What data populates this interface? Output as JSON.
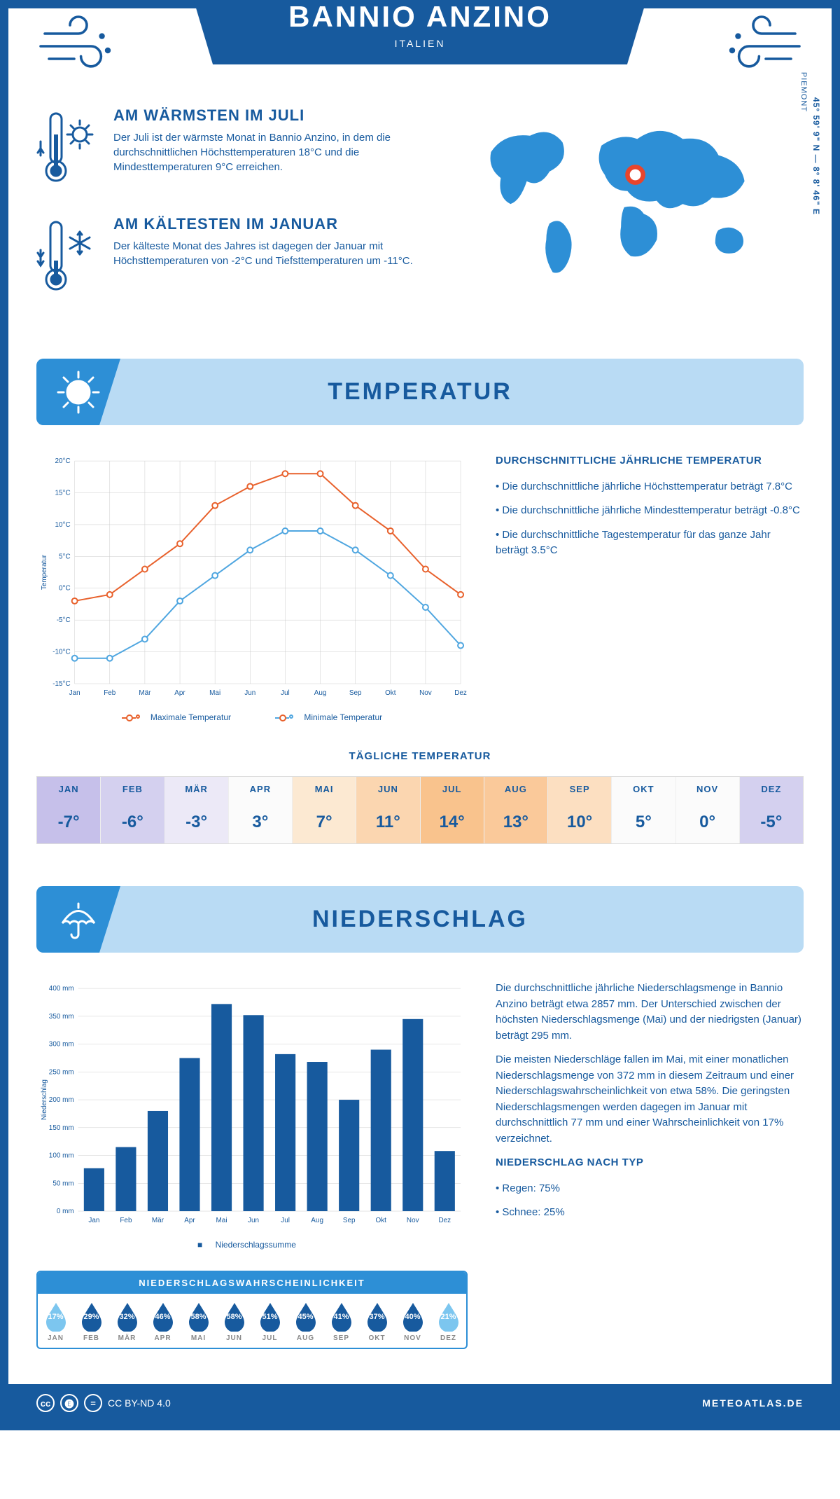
{
  "header": {
    "title": "BANNIO ANZINO",
    "subtitle": "ITALIEN",
    "region": "PIEMONT",
    "coords": "45° 59' 9\" N — 8° 8' 46\" E"
  },
  "facts": {
    "warm": {
      "title": "AM WÄRMSTEN IM JULI",
      "text": "Der Juli ist der wärmste Monat in Bannio Anzino, in dem die durchschnittlichen Höchsttemperaturen 18°C und die Mindesttemperaturen 9°C erreichen."
    },
    "cold": {
      "title": "AM KÄLTESTEN IM JANUAR",
      "text": "Der kälteste Monat des Jahres ist dagegen der Januar mit Höchsttemperaturen von -2°C und Tiefsttemperaturen um -11°C."
    }
  },
  "temperature": {
    "section_title": "TEMPERATUR",
    "side_title": "DURCHSCHNITTLICHE JÄHRLICHE TEMPERATUR",
    "bullets": [
      "Die durchschnittliche jährliche Höchsttemperatur beträgt 7.8°C",
      "Die durchschnittliche jährliche Mindesttemperatur beträgt -0.8°C",
      "Die durchschnittliche Tagestemperatur für das ganze Jahr beträgt 3.5°C"
    ],
    "chart": {
      "type": "line",
      "months": [
        "Jan",
        "Feb",
        "Mär",
        "Apr",
        "Mai",
        "Jun",
        "Jul",
        "Aug",
        "Sep",
        "Okt",
        "Nov",
        "Dez"
      ],
      "max_series": [
        -2,
        -1,
        3,
        7,
        13,
        16,
        18,
        18,
        13,
        9,
        3,
        -1
      ],
      "min_series": [
        -11,
        -11,
        -8,
        -2,
        2,
        6,
        9,
        9,
        6,
        2,
        -3,
        -9
      ],
      "max_color": "#e8612c",
      "min_color": "#4fa6e0",
      "ylim": [
        -15,
        20
      ],
      "ytick_step": 5,
      "ylabel": "Temperatur",
      "grid_color": "#cccccc",
      "background_color": "#ffffff",
      "line_width": 2,
      "marker": "circle",
      "legend_max": "Maximale Temperatur",
      "legend_min": "Minimale Temperatur"
    },
    "daily_title": "TÄGLICHE TEMPERATUR",
    "daily": {
      "months": [
        "JAN",
        "FEB",
        "MÄR",
        "APR",
        "MAI",
        "JUN",
        "JUL",
        "AUG",
        "SEP",
        "OKT",
        "NOV",
        "DEZ"
      ],
      "values": [
        "-7°",
        "-6°",
        "-3°",
        "3°",
        "7°",
        "11°",
        "14°",
        "13°",
        "10°",
        "5°",
        "0°",
        "-5°"
      ],
      "cell_colors": [
        "#c6c0ea",
        "#d4d0ef",
        "#ece9f7",
        "#fbfbfb",
        "#fce9d2",
        "#fbd6b0",
        "#f9c38d",
        "#fac99a",
        "#fcdfc1",
        "#fbfbfb",
        "#fbfbfb",
        "#d4d0ef"
      ]
    }
  },
  "precip": {
    "section_title": "NIEDERSCHLAG",
    "chart": {
      "type": "bar",
      "months": [
        "Jan",
        "Feb",
        "Mär",
        "Apr",
        "Mai",
        "Jun",
        "Jul",
        "Aug",
        "Sep",
        "Okt",
        "Nov",
        "Dez"
      ],
      "values": [
        77,
        115,
        180,
        275,
        372,
        352,
        282,
        268,
        200,
        290,
        345,
        108
      ],
      "bar_color": "#175a9e",
      "ylim": [
        0,
        400
      ],
      "ytick_step": 50,
      "ylabel": "Niederschlag",
      "y_unit": " mm",
      "grid_color": "#cccccc",
      "legend": "Niederschlagssumme"
    },
    "text1": "Die durchschnittliche jährliche Niederschlagsmenge in Bannio Anzino beträgt etwa 2857 mm. Der Unterschied zwischen der höchsten Niederschlagsmenge (Mai) und der niedrigsten (Januar) beträgt 295 mm.",
    "text2": "Die meisten Niederschläge fallen im Mai, mit einer monatlichen Niederschlagsmenge von 372 mm in diesem Zeitraum und einer Niederschlagswahrscheinlichkeit von etwa 58%. Die geringsten Niederschlagsmengen werden dagegen im Januar mit durchschnittlich 77 mm und einer Wahrscheinlichkeit von 17% verzeichnet.",
    "type_title": "NIEDERSCHLAG NACH TYP",
    "type_bullets": [
      "Regen: 75%",
      "Schnee: 25%"
    ],
    "prob": {
      "title": "NIEDERSCHLAGSWAHRSCHEINLICHKEIT",
      "months": [
        "JAN",
        "FEB",
        "MÄR",
        "APR",
        "MAI",
        "JUN",
        "JUL",
        "AUG",
        "SEP",
        "OKT",
        "NOV",
        "DEZ"
      ],
      "values": [
        "17%",
        "29%",
        "32%",
        "46%",
        "58%",
        "58%",
        "51%",
        "45%",
        "41%",
        "37%",
        "40%",
        "21%"
      ],
      "colors": [
        "#7cc6ef",
        "#175a9e",
        "#175a9e",
        "#175a9e",
        "#175a9e",
        "#175a9e",
        "#175a9e",
        "#175a9e",
        "#175a9e",
        "#175a9e",
        "#175a9e",
        "#7cc6ef"
      ]
    }
  },
  "footer": {
    "license": "CC BY-ND 4.0",
    "site": "METEOATLAS.DE"
  },
  "colors": {
    "primary": "#175a9e",
    "accent": "#2d8fd6",
    "light": "#b9dbf4"
  }
}
